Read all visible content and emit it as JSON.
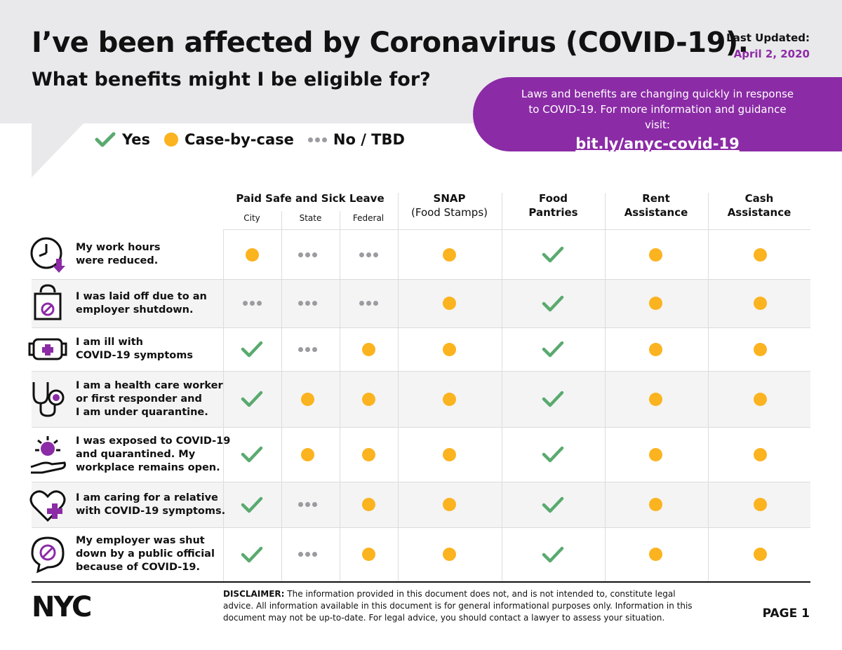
{
  "header": {
    "title": "I’ve been affected by Coronavirus (COVID-19).",
    "subtitle": "What benefits might I be eligible for?",
    "updated_label": "Last Updated:",
    "updated_date": "April 2, 2020"
  },
  "banner": {
    "message": "Laws and benefits are changing quickly in response to COVID-19. For more information and guidance visit:",
    "link": "bit.ly/anyc-covid-19"
  },
  "legend": {
    "yes": "Yes",
    "case": "Case-by-case",
    "no": "No / TBD"
  },
  "columns": {
    "paid_leave": "Paid Safe and Sick Leave",
    "city": "City",
    "state": "State",
    "federal": "Federal",
    "snap": "SNAP",
    "snap_sub": "(Food Stamps)",
    "food_1": "Food",
    "food_2": "Pantries",
    "rent_1": "Rent",
    "rent_2": "Assistance",
    "cash_1": "Cash",
    "cash_2": "Assistance"
  },
  "rows": [
    {
      "lines": [
        "My work hours",
        "were reduced."
      ],
      "icon": "clock-down-icon",
      "values": [
        "case",
        "no",
        "no",
        "case",
        "yes",
        "case",
        "case"
      ]
    },
    {
      "lines": [
        "I was laid off due to an",
        "employer shutdown."
      ],
      "icon": "bag-no-icon",
      "values": [
        "no",
        "no",
        "no",
        "case",
        "yes",
        "case",
        "case"
      ]
    },
    {
      "lines": [
        "I am ill with",
        "COVID-19 symptoms"
      ],
      "icon": "mask-icon",
      "values": [
        "yes",
        "no",
        "case",
        "case",
        "yes",
        "case",
        "case"
      ]
    },
    {
      "lines": [
        "I am a health care worker",
        "or first responder and",
        "I am under quarantine."
      ],
      "icon": "stethoscope-icon",
      "values": [
        "yes",
        "case",
        "case",
        "case",
        "yes",
        "case",
        "case"
      ]
    },
    {
      "lines": [
        "I was exposed to COVID-19",
        "and quarantined. My",
        "workplace remains open."
      ],
      "icon": "virus-hand-icon",
      "values": [
        "yes",
        "case",
        "case",
        "case",
        "yes",
        "case",
        "case"
      ]
    },
    {
      "lines": [
        "I am caring for a relative",
        "with COVID-19 symptoms."
      ],
      "icon": "heart-plus-icon",
      "values": [
        "yes",
        "no",
        "case",
        "case",
        "yes",
        "case",
        "case"
      ]
    },
    {
      "lines": [
        "My employer was shut",
        "down by a public official",
        "because of COVID-19."
      ],
      "icon": "speech-no-icon",
      "values": [
        "yes",
        "no",
        "case",
        "case",
        "yes",
        "case",
        "case"
      ]
    }
  ],
  "footer": {
    "logo": "NYC",
    "disclaimer_label": "DISCLAIMER:",
    "disclaimer_text": "The information provided in this document does not, and is not intended to, constitute legal advice. All information available in this document is for general informational purposes only. Information in this document may not be up-to-date. For legal advice, you should contact a lawyer to assess your situation.",
    "page": "PAGE 1"
  },
  "colors": {
    "purple": "#8b2ba6",
    "yes_green": "#5aaa6f",
    "case_yellow": "#fbb31f",
    "no_gray": "#9b9ba0"
  }
}
